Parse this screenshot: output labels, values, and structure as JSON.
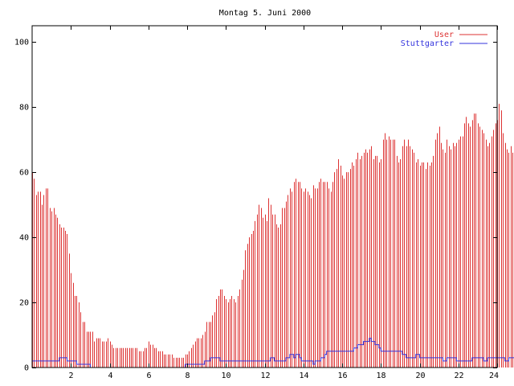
{
  "chart_data": {
    "type": "bar",
    "title": "Montag 5. Juni 2000",
    "xlabel": "",
    "ylabel": "",
    "xlim": [
      0,
      24
    ],
    "ylim": [
      0,
      105
    ],
    "grid": false,
    "legend_position": "top-right",
    "x_ticks": [
      {
        "value": 2,
        "label": "2"
      },
      {
        "value": 4,
        "label": "4"
      },
      {
        "value": 6,
        "label": "6"
      },
      {
        "value": 8,
        "label": "8"
      },
      {
        "value": 10,
        "label": "10"
      },
      {
        "value": 12,
        "label": "12"
      },
      {
        "value": 14,
        "label": "14"
      },
      {
        "value": 16,
        "label": "16"
      },
      {
        "value": 18,
        "label": "18"
      },
      {
        "value": 20,
        "label": "20"
      },
      {
        "value": 22,
        "label": "22"
      },
      {
        "value": 24,
        "label": "24"
      }
    ],
    "y_ticks": [
      {
        "value": 0,
        "label": "0"
      },
      {
        "value": 20,
        "label": "20"
      },
      {
        "value": 40,
        "label": "40"
      },
      {
        "value": 60,
        "label": "60"
      },
      {
        "value": 80,
        "label": "80"
      },
      {
        "value": 100,
        "label": "100"
      }
    ],
    "x_interval": 0.1,
    "series": [
      {
        "name": "User",
        "kind": "impulses",
        "color": "#dd3333",
        "values": [
          60,
          58,
          53,
          54,
          54,
          50,
          53,
          55,
          55,
          49,
          48,
          49,
          47,
          46,
          44,
          43,
          43,
          42,
          41,
          35,
          29,
          26,
          22,
          22,
          20,
          17,
          14,
          14,
          11,
          11,
          11,
          11,
          8,
          9,
          9,
          9,
          8,
          8,
          8,
          9,
          8,
          7,
          6,
          6,
          6,
          6,
          6,
          6,
          6,
          6,
          6,
          6,
          6,
          6,
          6,
          5,
          5,
          5,
          6,
          6,
          8,
          7,
          7,
          6,
          6,
          5,
          5,
          5,
          4,
          4,
          4,
          4,
          4,
          3,
          3,
          3,
          3,
          3,
          3,
          4,
          4,
          5,
          6,
          7,
          8,
          9,
          9,
          9,
          10,
          11,
          14,
          14,
          14,
          16,
          17,
          21,
          22,
          24,
          24,
          22,
          21,
          20,
          21,
          22,
          21,
          20,
          22,
          24,
          27,
          30,
          36,
          38,
          40,
          41,
          42,
          45,
          47,
          50,
          49,
          46,
          47,
          45,
          52,
          50,
          47,
          47,
          44,
          43,
          44,
          49,
          49,
          51,
          53,
          55,
          54,
          57,
          58,
          57,
          57,
          55,
          54,
          55,
          54,
          53,
          52,
          56,
          55,
          55,
          57,
          58,
          57,
          57,
          57,
          55,
          54,
          57,
          60,
          61,
          64,
          62,
          59,
          58,
          60,
          60,
          61,
          63,
          62,
          64,
          66,
          64,
          65,
          66,
          67,
          66,
          67,
          68,
          64,
          65,
          65,
          63,
          64,
          70,
          72,
          70,
          71,
          70,
          70,
          70,
          65,
          63,
          64,
          68,
          70,
          68,
          70,
          68,
          67,
          66,
          63,
          64,
          62,
          63,
          63,
          61,
          63,
          62,
          63,
          65,
          70,
          72,
          74,
          69,
          67,
          66,
          70,
          68,
          67,
          69,
          68,
          69,
          70,
          71,
          71,
          75,
          77,
          75,
          74,
          76,
          78,
          78,
          75,
          74,
          73,
          72,
          70,
          68,
          69,
          71,
          73,
          75,
          76,
          81,
          79,
          72,
          69,
          67,
          66,
          68,
          66,
          65,
          64,
          66,
          69
        ]
      },
      {
        "name": "Stuttgarter",
        "kind": "steps",
        "color": "#3333dd",
        "values": [
          2,
          2,
          2,
          2,
          2,
          2,
          2,
          2,
          2,
          2,
          2,
          2,
          2,
          2,
          3,
          3,
          3,
          3,
          2,
          2,
          2,
          2,
          2,
          1,
          1,
          1,
          1,
          1,
          1,
          1,
          0,
          0,
          0,
          0,
          0,
          0,
          0,
          0,
          0,
          0,
          0,
          0,
          0,
          0,
          0,
          0,
          0,
          0,
          0,
          0,
          0,
          0,
          0,
          0,
          0,
          0,
          0,
          0,
          0,
          0,
          0,
          0,
          0,
          0,
          0,
          0,
          0,
          0,
          0,
          0,
          0,
          0,
          0,
          0,
          0,
          0,
          0,
          0,
          0,
          1,
          1,
          1,
          1,
          1,
          1,
          1,
          1,
          1,
          1,
          2,
          2,
          2,
          3,
          3,
          3,
          3,
          3,
          2,
          2,
          2,
          2,
          2,
          2,
          2,
          2,
          2,
          2,
          2,
          2,
          2,
          2,
          2,
          2,
          2,
          2,
          2,
          2,
          2,
          2,
          2,
          2,
          2,
          2,
          3,
          3,
          2,
          2,
          2,
          2,
          2,
          2,
          3,
          3,
          4,
          4,
          3,
          4,
          4,
          3,
          2,
          2,
          2,
          2,
          2,
          2,
          1,
          2,
          2,
          2,
          3,
          3,
          4,
          5,
          5,
          5,
          5,
          5,
          5,
          5,
          5,
          5,
          5,
          5,
          5,
          5,
          5,
          6,
          6,
          7,
          7,
          7,
          8,
          8,
          8,
          9,
          8,
          8,
          7,
          7,
          6,
          5,
          5,
          5,
          5,
          5,
          5,
          5,
          5,
          5,
          5,
          5,
          4,
          4,
          3,
          3,
          3,
          3,
          3,
          4,
          4,
          3,
          3,
          3,
          3,
          3,
          3,
          3,
          3,
          3,
          3,
          3,
          3,
          2,
          2,
          3,
          3,
          3,
          3,
          3,
          2,
          2,
          2,
          2,
          2,
          2,
          2,
          2,
          3,
          3,
          3,
          3,
          3,
          3,
          2,
          2,
          3,
          3,
          3,
          3,
          3,
          3,
          3,
          3,
          3,
          2,
          2,
          3,
          3,
          3,
          3,
          3,
          3,
          3,
          3,
          3,
          3,
          3,
          3,
          3,
          3,
          3,
          3
        ]
      }
    ]
  }
}
